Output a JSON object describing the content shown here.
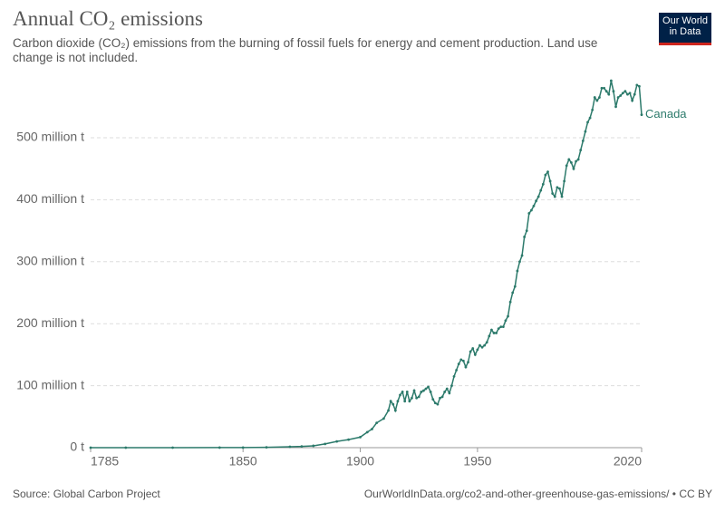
{
  "header": {
    "logo": [
      "Our World",
      "in Data"
    ]
  },
  "chart_data": {
    "type": "line",
    "title": "Annual CO₂ emissions",
    "subtitle": "Carbon dioxide (CO₂) emissions from the burning of fossil fuels for energy and cement production. Land use change is not included.",
    "x": [
      1785,
      1800,
      1820,
      1840,
      1850,
      1860,
      1870,
      1875,
      1880,
      1885,
      1890,
      1895,
      1900,
      1903,
      1905,
      1907,
      1910,
      1912,
      1913,
      1914,
      1915,
      1916,
      1917,
      1918,
      1919,
      1920,
      1921,
      1922,
      1923,
      1924,
      1925,
      1926,
      1927,
      1928,
      1929,
      1930,
      1931,
      1932,
      1933,
      1934,
      1935,
      1936,
      1937,
      1938,
      1939,
      1940,
      1941,
      1942,
      1943,
      1944,
      1945,
      1946,
      1947,
      1948,
      1949,
      1950,
      1951,
      1952,
      1953,
      1954,
      1955,
      1956,
      1957,
      1958,
      1959,
      1960,
      1961,
      1962,
      1963,
      1964,
      1965,
      1966,
      1967,
      1968,
      1969,
      1970,
      1971,
      1972,
      1973,
      1974,
      1975,
      1976,
      1977,
      1978,
      1979,
      1980,
      1981,
      1982,
      1983,
      1984,
      1985,
      1986,
      1987,
      1988,
      1989,
      1990,
      1991,
      1992,
      1993,
      1994,
      1995,
      1996,
      1997,
      1998,
      1999,
      2000,
      2001,
      2002,
      2003,
      2004,
      2005,
      2006,
      2007,
      2008,
      2009,
      2010,
      2011,
      2012,
      2013,
      2014,
      2015,
      2016,
      2017,
      2018,
      2019,
      2020
    ],
    "series": [
      {
        "name": "Canada",
        "color": "#2c7a6b",
        "values": [
          0.007,
          0.01,
          0.02,
          0.1,
          0.2,
          0.5,
          1.5,
          2,
          3,
          6,
          10,
          13,
          17,
          25,
          30,
          40,
          47,
          60,
          75,
          70,
          60,
          75,
          85,
          90,
          75,
          90,
          75,
          80,
          92,
          80,
          82,
          90,
          92,
          95,
          98,
          90,
          78,
          72,
          70,
          80,
          82,
          90,
          95,
          88,
          100,
          115,
          125,
          135,
          142,
          140,
          130,
          138,
          155,
          160,
          150,
          158,
          165,
          162,
          165,
          170,
          180,
          190,
          185,
          185,
          192,
          195,
          195,
          205,
          212,
          235,
          250,
          260,
          285,
          300,
          310,
          340,
          350,
          378,
          383,
          390,
          398,
          405,
          415,
          425,
          440,
          445,
          430,
          410,
          405,
          420,
          418,
          405,
          430,
          455,
          465,
          460,
          450,
          462,
          465,
          480,
          495,
          510,
          525,
          532,
          545,
          565,
          560,
          565,
          580,
          580,
          575,
          570,
          592,
          575,
          550,
          565,
          568,
          572,
          575,
          570,
          572,
          560,
          570,
          585,
          583,
          537
        ]
      }
    ],
    "xlim": [
      1785,
      2020
    ],
    "xticks": [
      1785,
      1850,
      1900,
      1950,
      2020
    ],
    "ylim": [
      0,
      600
    ],
    "yticks": [
      {
        "value": 0,
        "label": "0 t"
      },
      {
        "value": 100,
        "label": "100 million t"
      },
      {
        "value": 200,
        "label": "200 million t"
      },
      {
        "value": 300,
        "label": "300 million t"
      },
      {
        "value": 400,
        "label": "400 million t"
      },
      {
        "value": 500,
        "label": "500 million t"
      }
    ],
    "grid": true,
    "source": "Source: Global Carbon Project",
    "url": "OurWorldInData.org/co2-and-other-greenhouse-gas-emissions/ • CC BY"
  }
}
